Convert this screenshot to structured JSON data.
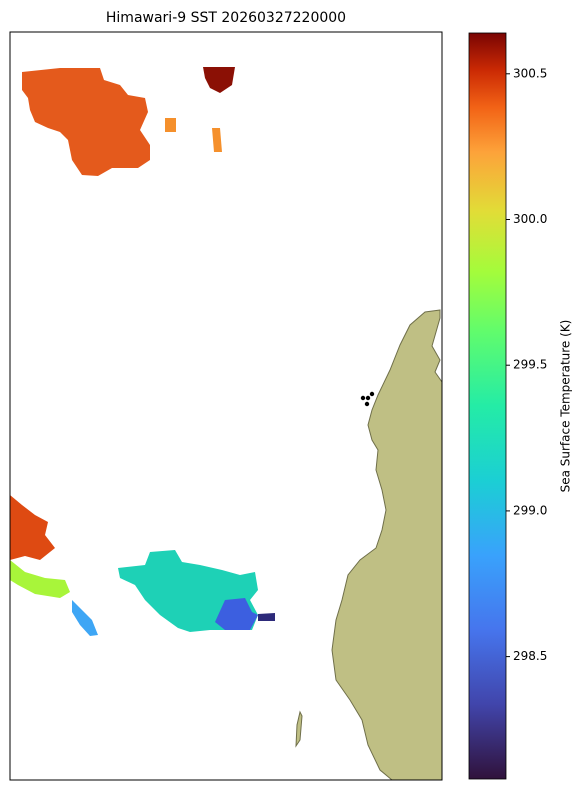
{
  "title": "Himawari-9 SST 20260327220000",
  "colorbar": {
    "label": "Sea Surface Temperature (K)",
    "lim": [
      298.08,
      300.64
    ],
    "ticks": [
      298.5,
      {
        "value": 299.0,
        "label": "299.0"
      },
      299.5,
      {
        "value": 300.0,
        "label": "300.0"
      },
      300.5
    ]
  }
}
